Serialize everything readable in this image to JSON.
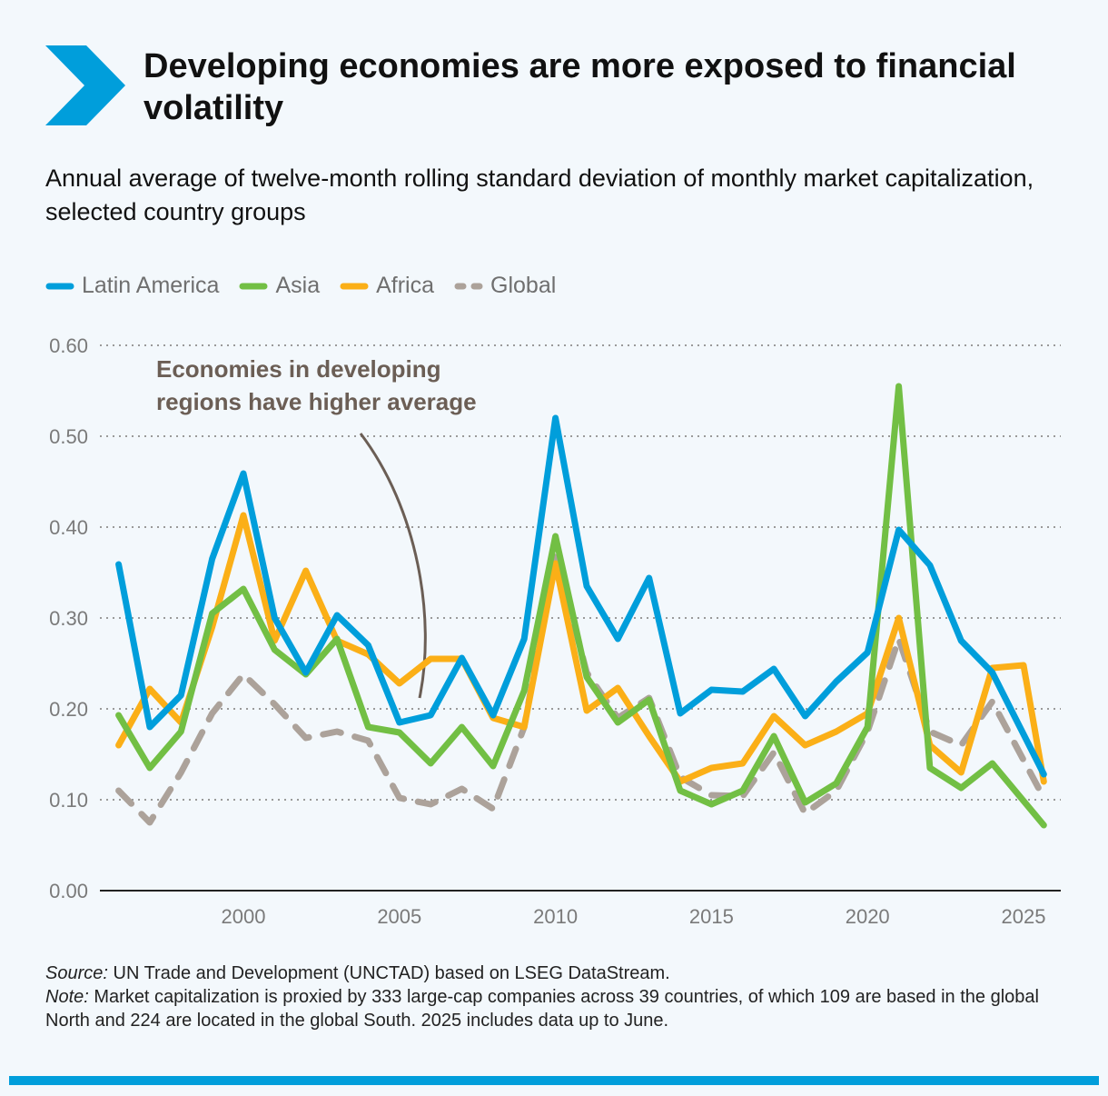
{
  "title": "Developing economies are more exposed to financial volatility",
  "subtitle": "Annual average of twelve-month rolling standard deviation of monthly market capitalization, selected country groups",
  "source_label": "Source:",
  "source_text": " UN Trade and Development (UNCTAD) based on LSEG DataStream.",
  "note_label": "Note:",
  "note_text": " Market capitalization is proxied by 333 large-cap companies across 39 countries, of which 109 are based in the global North and 224 are located in the global South. 2025 includes data up to June.",
  "chart_data": {
    "type": "line",
    "ylim": [
      0,
      0.6
    ],
    "yticks": [
      "0.00",
      "0.10",
      "0.20",
      "0.30",
      "0.40",
      "0.50",
      "0.60"
    ],
    "xlim": [
      1996,
      2025
    ],
    "xticks": [
      "2000",
      "2005",
      "2010",
      "2015",
      "2020",
      "2025"
    ],
    "grid": "horizontal dotted",
    "legend_position": "top-left",
    "annotation": [
      "Economies in developing",
      "regions have higher average"
    ],
    "series": [
      {
        "name": "Latin America",
        "color": "#009edb",
        "dashed": false,
        "points": [
          [
            1996,
            0.359
          ],
          [
            1997,
            0.18
          ],
          [
            1998,
            0.215
          ],
          [
            1999,
            0.365
          ],
          [
            2000,
            0.459
          ],
          [
            2001,
            0.3
          ],
          [
            2002,
            0.24
          ],
          [
            2003,
            0.303
          ],
          [
            2004,
            0.27
          ],
          [
            2005,
            0.185
          ],
          [
            2006,
            0.193
          ],
          [
            2007,
            0.256
          ],
          [
            2008,
            0.193
          ],
          [
            2009,
            0.277
          ],
          [
            2010,
            0.52
          ],
          [
            2011,
            0.335
          ],
          [
            2012,
            0.277
          ],
          [
            2013,
            0.344
          ],
          [
            2014,
            0.195
          ],
          [
            2015,
            0.221
          ],
          [
            2016,
            0.219
          ],
          [
            2017,
            0.244
          ],
          [
            2018,
            0.192
          ],
          [
            2019,
            0.23
          ],
          [
            2020,
            0.262
          ],
          [
            2021,
            0.397
          ],
          [
            2022,
            0.358
          ],
          [
            2023,
            0.275
          ],
          [
            2024,
            0.24
          ],
          [
            2025.65,
            0.128
          ]
        ]
      },
      {
        "name": "Asia",
        "color": "#72bf44",
        "dashed": false,
        "points": [
          [
            1996,
            0.193
          ],
          [
            1997,
            0.135
          ],
          [
            1998,
            0.175
          ],
          [
            1999,
            0.305
          ],
          [
            2000,
            0.332
          ],
          [
            2001,
            0.265
          ],
          [
            2002,
            0.238
          ],
          [
            2003,
            0.277
          ],
          [
            2004,
            0.18
          ],
          [
            2005,
            0.174
          ],
          [
            2006,
            0.14
          ],
          [
            2007,
            0.18
          ],
          [
            2008,
            0.137
          ],
          [
            2009,
            0.22
          ],
          [
            2010,
            0.39
          ],
          [
            2011,
            0.235
          ],
          [
            2012,
            0.185
          ],
          [
            2013,
            0.21
          ],
          [
            2014,
            0.11
          ],
          [
            2015,
            0.095
          ],
          [
            2016,
            0.11
          ],
          [
            2017,
            0.17
          ],
          [
            2018,
            0.097
          ],
          [
            2019,
            0.118
          ],
          [
            2020,
            0.18
          ],
          [
            2021,
            0.555
          ],
          [
            2022,
            0.135
          ],
          [
            2023,
            0.113
          ],
          [
            2024,
            0.14
          ],
          [
            2025.65,
            0.072
          ]
        ]
      },
      {
        "name": "Africa",
        "color": "#fbaf17",
        "dashed": false,
        "points": [
          [
            1996,
            0.16
          ],
          [
            1997,
            0.222
          ],
          [
            1998,
            0.185
          ],
          [
            1999,
            0.29
          ],
          [
            2000,
            0.413
          ],
          [
            2001,
            0.275
          ],
          [
            2002,
            0.352
          ],
          [
            2003,
            0.275
          ],
          [
            2004,
            0.26
          ],
          [
            2005,
            0.228
          ],
          [
            2006,
            0.255
          ],
          [
            2007,
            0.255
          ],
          [
            2008,
            0.19
          ],
          [
            2009,
            0.18
          ],
          [
            2010,
            0.36
          ],
          [
            2011,
            0.198
          ],
          [
            2012,
            0.223
          ],
          [
            2013,
            0.17
          ],
          [
            2014,
            0.12
          ],
          [
            2015,
            0.135
          ],
          [
            2016,
            0.14
          ],
          [
            2017,
            0.192
          ],
          [
            2018,
            0.16
          ],
          [
            2019,
            0.175
          ],
          [
            2020,
            0.195
          ],
          [
            2021,
            0.3
          ],
          [
            2022,
            0.16
          ],
          [
            2023,
            0.13
          ],
          [
            2024,
            0.245
          ],
          [
            2025,
            0.248
          ],
          [
            2025.65,
            0.12
          ]
        ]
      },
      {
        "name": "Global",
        "color": "#aca29a",
        "dashed": true,
        "points": [
          [
            1996,
            0.11
          ],
          [
            1997,
            0.075
          ],
          [
            1998,
            0.13
          ],
          [
            1999,
            0.195
          ],
          [
            2000,
            0.238
          ],
          [
            2001,
            0.205
          ],
          [
            2002,
            0.168
          ],
          [
            2003,
            0.175
          ],
          [
            2004,
            0.165
          ],
          [
            2005,
            0.102
          ],
          [
            2006,
            0.095
          ],
          [
            2007,
            0.112
          ],
          [
            2008,
            0.09
          ],
          [
            2009,
            0.18
          ],
          [
            2010,
            0.372
          ],
          [
            2011,
            0.24
          ],
          [
            2012,
            0.19
          ],
          [
            2013,
            0.212
          ],
          [
            2014,
            0.125
          ],
          [
            2015,
            0.105
          ],
          [
            2016,
            0.104
          ],
          [
            2017,
            0.152
          ],
          [
            2018,
            0.085
          ],
          [
            2019,
            0.11
          ],
          [
            2020,
            0.175
          ],
          [
            2021,
            0.277
          ],
          [
            2022,
            0.175
          ],
          [
            2023,
            0.16
          ],
          [
            2024,
            0.208
          ],
          [
            2025.65,
            0.102
          ]
        ]
      }
    ]
  }
}
